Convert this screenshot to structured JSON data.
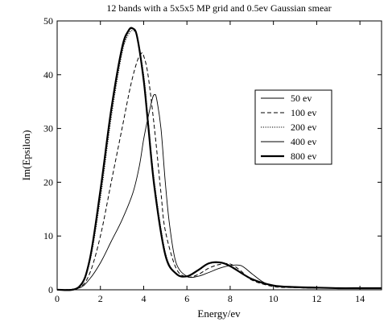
{
  "chart_data": {
    "type": "line",
    "title": "12 bands with a 5x5x5 MP grid and 0.5ev Gaussian smear",
    "xlabel": "Energy/ev",
    "ylabel": "Im(Epsilon)",
    "xlim": [
      0,
      15
    ],
    "ylim": [
      0,
      50
    ],
    "xticks": [
      0,
      2,
      4,
      6,
      8,
      10,
      12,
      14
    ],
    "yticks": [
      0,
      10,
      20,
      30,
      40,
      50
    ],
    "grid": false,
    "legend_position": "right-middle",
    "series": [
      {
        "name": "50 ev",
        "style": "thin-solid",
        "x": [
          0,
          1.0,
          1.5,
          2.0,
          2.5,
          3.0,
          3.5,
          3.8,
          4.0,
          4.2,
          4.4,
          4.5,
          4.6,
          4.8,
          5.0,
          5.2,
          5.5,
          6.0,
          6.5,
          7.0,
          7.5,
          8.0,
          8.5,
          9.0,
          9.5,
          10.0,
          11.0,
          12.0,
          13.0,
          14.0,
          15.0
        ],
        "y": [
          0,
          0.3,
          2.0,
          5.0,
          9.0,
          13.0,
          18.0,
          23.0,
          28.0,
          32.0,
          35.5,
          36.3,
          35.5,
          30.0,
          20.0,
          12.0,
          5.0,
          2.5,
          2.5,
          3.2,
          4.0,
          4.5,
          4.5,
          3.0,
          1.5,
          0.7,
          0.4,
          0.3,
          0.3,
          0.3,
          0.3
        ]
      },
      {
        "name": "100 ev",
        "style": "dashed",
        "x": [
          0,
          1.0,
          1.5,
          2.0,
          2.5,
          3.0,
          3.4,
          3.7,
          3.9,
          4.0,
          4.2,
          4.5,
          4.8,
          5.0,
          5.5,
          6.0,
          6.5,
          7.0,
          7.5,
          8.0,
          8.5,
          9.0,
          10.0,
          11.0,
          12.0,
          13.0,
          14.0,
          15.0
        ],
        "y": [
          0,
          0.4,
          3.0,
          10.0,
          20.0,
          30.0,
          38.0,
          42.5,
          44.0,
          43.5,
          40.0,
          30.0,
          18.0,
          11.0,
          4.0,
          2.4,
          2.8,
          4.0,
          4.7,
          4.8,
          3.5,
          1.8,
          0.6,
          0.4,
          0.3,
          0.3,
          0.3,
          0.3
        ]
      },
      {
        "name": "200 ev",
        "style": "dotted",
        "x": [
          0,
          1.0,
          1.5,
          2.0,
          2.5,
          3.0,
          3.3,
          3.5,
          3.7,
          4.0,
          4.2,
          4.5,
          5.0,
          5.5,
          6.0,
          6.5,
          7.0,
          7.5,
          8.0,
          9.0,
          10.0,
          11.0,
          12.0,
          13.0,
          14.0,
          15.0
        ],
        "y": [
          0,
          0.5,
          5.0,
          17.0,
          32.0,
          44.0,
          47.5,
          48.2,
          47.0,
          40.0,
          32.0,
          20.0,
          7.0,
          3.0,
          2.5,
          3.5,
          4.8,
          5.0,
          4.5,
          2.0,
          0.8,
          0.5,
          0.4,
          0.3,
          0.3,
          0.3
        ]
      },
      {
        "name": "400 ev",
        "style": "thin-solid",
        "x": [
          0,
          1.0,
          1.5,
          2.0,
          2.5,
          3.0,
          3.3,
          3.5,
          3.7,
          4.0,
          4.2,
          4.5,
          5.0,
          5.5,
          6.0,
          6.5,
          7.0,
          7.5,
          8.0,
          9.0,
          10.0,
          11.0,
          12.0,
          13.0,
          14.0,
          15.0
        ],
        "y": [
          0,
          0.5,
          5.5,
          18.0,
          33.0,
          44.5,
          48.0,
          48.5,
          47.0,
          39.0,
          31.0,
          19.0,
          6.5,
          3.0,
          2.5,
          3.6,
          4.9,
          5.1,
          4.4,
          2.0,
          0.8,
          0.5,
          0.4,
          0.3,
          0.3,
          0.3
        ]
      },
      {
        "name": "800 ev",
        "style": "thick-solid",
        "x": [
          0,
          1.0,
          1.5,
          2.0,
          2.5,
          3.0,
          3.3,
          3.5,
          3.7,
          4.0,
          4.2,
          4.5,
          5.0,
          5.5,
          6.0,
          6.5,
          7.0,
          7.5,
          8.0,
          9.0,
          10.0,
          11.0,
          12.0,
          13.0,
          14.0,
          15.0
        ],
        "y": [
          0,
          0.5,
          5.5,
          18.5,
          33.5,
          45.0,
          48.2,
          48.6,
          47.0,
          39.0,
          31.0,
          19.0,
          6.5,
          3.0,
          2.5,
          3.6,
          4.9,
          5.1,
          4.4,
          2.0,
          0.8,
          0.5,
          0.4,
          0.3,
          0.3,
          0.3
        ]
      }
    ]
  }
}
